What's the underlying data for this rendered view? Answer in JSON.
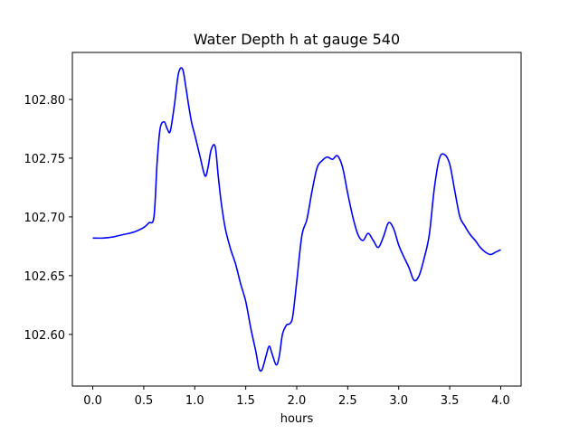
{
  "chart_data": {
    "type": "line",
    "title": "Water Depth h at gauge 540",
    "xlabel": "hours",
    "ylabel": "",
    "xlim": [
      -0.2,
      4.2
    ],
    "ylim": [
      102.556,
      102.84
    ],
    "xticks": [
      0.0,
      0.5,
      1.0,
      1.5,
      2.0,
      2.5,
      3.0,
      3.5,
      4.0
    ],
    "xtick_labels": [
      "0.0",
      "0.5",
      "1.0",
      "1.5",
      "2.0",
      "2.5",
      "3.0",
      "3.5",
      "4.0"
    ],
    "yticks": [
      102.6,
      102.65,
      102.7,
      102.75,
      102.8
    ],
    "ytick_labels": [
      "102.60",
      "102.65",
      "102.70",
      "102.75",
      "102.80"
    ],
    "grid": false,
    "series": [
      {
        "color": "#0000ff",
        "x": [
          0.0,
          0.1,
          0.2,
          0.3,
          0.4,
          0.5,
          0.55,
          0.6,
          0.63,
          0.66,
          0.7,
          0.73,
          0.76,
          0.8,
          0.84,
          0.88,
          0.91,
          0.94,
          0.97,
          1.0,
          1.05,
          1.1,
          1.13,
          1.16,
          1.2,
          1.23,
          1.26,
          1.3,
          1.35,
          1.4,
          1.45,
          1.5,
          1.55,
          1.6,
          1.63,
          1.66,
          1.7,
          1.73,
          1.76,
          1.8,
          1.83,
          1.86,
          1.9,
          1.93,
          1.96,
          2.0,
          2.05,
          2.1,
          2.15,
          2.2,
          2.25,
          2.3,
          2.35,
          2.4,
          2.45,
          2.5,
          2.55,
          2.6,
          2.65,
          2.7,
          2.75,
          2.8,
          2.85,
          2.9,
          2.95,
          3.0,
          3.05,
          3.1,
          3.15,
          3.2,
          3.25,
          3.3,
          3.35,
          3.4,
          3.45,
          3.5,
          3.55,
          3.6,
          3.65,
          3.7,
          3.75,
          3.8,
          3.85,
          3.9,
          3.95,
          4.0
        ],
        "y": [
          102.682,
          102.682,
          102.683,
          102.685,
          102.687,
          102.691,
          102.695,
          102.7,
          102.745,
          102.775,
          102.781,
          102.775,
          102.773,
          102.795,
          102.822,
          102.826,
          102.812,
          102.795,
          102.78,
          102.77,
          102.752,
          102.735,
          102.742,
          102.757,
          102.76,
          102.735,
          102.712,
          102.69,
          102.673,
          102.66,
          102.643,
          102.628,
          102.605,
          102.585,
          102.571,
          102.57,
          102.582,
          102.59,
          102.583,
          102.574,
          102.582,
          102.6,
          102.608,
          102.609,
          102.615,
          102.645,
          102.684,
          102.698,
          102.722,
          102.742,
          102.748,
          102.751,
          102.749,
          102.752,
          102.742,
          102.72,
          102.7,
          102.685,
          102.68,
          102.686,
          102.68,
          102.674,
          102.683,
          102.695,
          102.69,
          102.676,
          102.666,
          102.657,
          102.646,
          102.65,
          102.665,
          102.685,
          102.725,
          102.75,
          102.753,
          102.745,
          102.722,
          102.7,
          102.692,
          102.685,
          102.68,
          102.674,
          102.67,
          102.668,
          102.67,
          102.672
        ]
      }
    ]
  }
}
